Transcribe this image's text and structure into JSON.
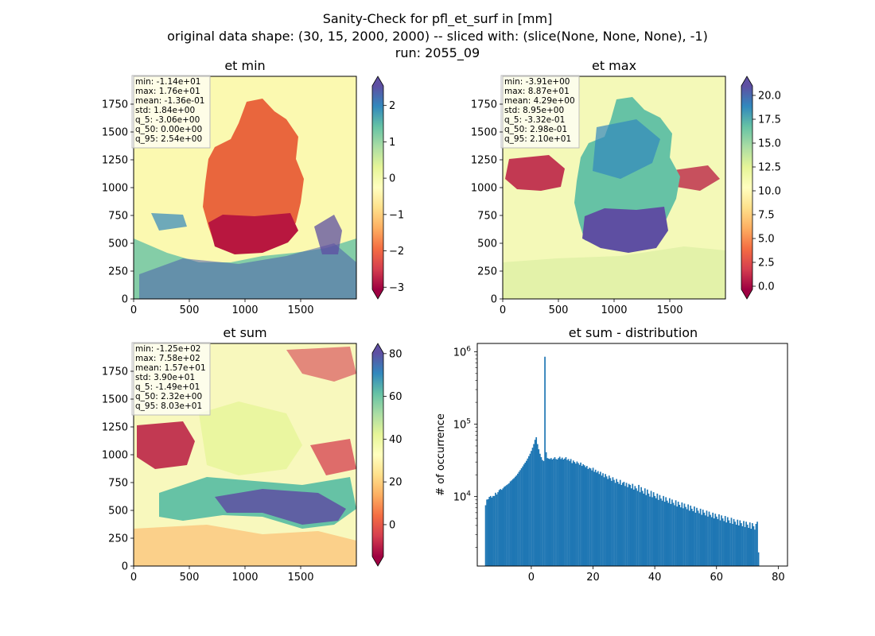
{
  "suptitle": {
    "line1": "Sanity-Check for pfl_et_surf in [mm]",
    "line2": "original data shape: (30, 15, 2000, 2000) -- sliced with: (slice(None, None, None), -1)",
    "line3": "run: 2055_09"
  },
  "colors": {
    "hist_bar": "#1f77b4",
    "spectral": [
      "#9e0142",
      "#d53e4f",
      "#f46d43",
      "#fdae61",
      "#fee08b",
      "#ffffbf",
      "#e6f598",
      "#abdda4",
      "#66c2a5",
      "#3288bd",
      "#5e4fa2"
    ]
  },
  "chart_data": [
    {
      "type": "heatmap",
      "title": "et min",
      "xlim": [
        0,
        2000
      ],
      "ylim": [
        0,
        2000
      ],
      "x_ticks": [
        "0",
        "500",
        "1000",
        "1500"
      ],
      "y_ticks": [
        "0",
        "250",
        "500",
        "750",
        "1000",
        "1250",
        "1500",
        "1750"
      ],
      "colorbar": {
        "vmin": -3.06,
        "vmax": 2.54,
        "ticks": [
          -3,
          -2,
          -1,
          0,
          1,
          2
        ],
        "tick_labels": [
          "−3",
          "−2",
          "−1",
          "0",
          "1",
          "2"
        ],
        "extend": "both",
        "colormap": "Spectral"
      },
      "stats": [
        "min: -1.14e+01",
        "max: 1.76e+01",
        "mean: -1.36e-01",
        "std: 1.84e+00",
        "q_5: -3.06e+00",
        "q_50: 0.00e+00",
        "q_95: 2.54e+00"
      ]
    },
    {
      "type": "heatmap",
      "title": "et max",
      "xlim": [
        0,
        2000
      ],
      "ylim": [
        0,
        2000
      ],
      "x_ticks": [
        "0",
        "500",
        "1000",
        "1500"
      ],
      "y_ticks": [
        "0",
        "250",
        "500",
        "750",
        "1000",
        "1250",
        "1500",
        "1750"
      ],
      "colorbar": {
        "vmin": -0.332,
        "vmax": 21.0,
        "ticks": [
          0,
          2.5,
          5,
          7.5,
          10,
          12.5,
          15,
          17.5,
          20
        ],
        "tick_labels": [
          "0.0",
          "2.5",
          "5.0",
          "7.5",
          "10.0",
          "12.5",
          "15.0",
          "17.5",
          "20.0"
        ],
        "extend": "both",
        "colormap": "Spectral"
      },
      "stats": [
        "min: -3.91e+00",
        "max: 8.87e+01",
        "mean: 4.29e+00",
        "std: 8.95e+00",
        "q_5: -3.32e-01",
        "q_50: 2.98e-01",
        "q_95: 2.10e+01"
      ]
    },
    {
      "type": "heatmap",
      "title": "et sum",
      "xlim": [
        0,
        2000
      ],
      "ylim": [
        0,
        2000
      ],
      "x_ticks": [
        "0",
        "500",
        "1000",
        "1500"
      ],
      "y_ticks": [
        "0",
        "250",
        "500",
        "750",
        "1000",
        "1250",
        "1500",
        "1750"
      ],
      "colorbar": {
        "vmin": -14.9,
        "vmax": 80.3,
        "ticks": [
          0,
          20,
          40,
          60,
          80
        ],
        "tick_labels": [
          "0",
          "20",
          "40",
          "60",
          "80"
        ],
        "extend": "both",
        "colormap": "Spectral"
      },
      "stats": [
        "min: -1.25e+02",
        "max: 7.58e+02",
        "mean: 1.57e+01",
        "std: 3.90e+01",
        "q_5: -1.49e+01",
        "q_50: 2.32e+00",
        "q_95: 8.03e+01"
      ]
    },
    {
      "type": "bar",
      "title": "et sum - distribution",
      "xlabel": "",
      "ylabel": "# of occurrence",
      "xlim": [
        -17.5,
        83.0
      ],
      "ylim": [
        1100,
        1300000
      ],
      "yscale": "log",
      "x_ticks": [
        0,
        20,
        40,
        60,
        80
      ],
      "y_ticks": [
        {
          "value": 10000,
          "base": "10",
          "exp": "4"
        },
        {
          "value": 100000,
          "base": "10",
          "exp": "5"
        },
        {
          "value": 1000000,
          "base": "10",
          "exp": "6"
        }
      ],
      "bins": {
        "start": -15.0,
        "width": 0.4
      },
      "values": [
        7600,
        9100,
        9200,
        9900,
        10200,
        9700,
        10200,
        10200,
        11300,
        10700,
        11500,
        12300,
        12700,
        12400,
        13000,
        13600,
        14000,
        14400,
        14800,
        15300,
        16200,
        16700,
        17400,
        18000,
        18800,
        19600,
        20700,
        22000,
        23200,
        24600,
        26100,
        27800,
        29400,
        31200,
        33500,
        36200,
        39100,
        42700,
        47300,
        53100,
        60800,
        66000,
        53000,
        45000,
        39000,
        35000,
        32000,
        31000,
        852000,
        41000,
        34000,
        33500,
        33000,
        34000,
        32500,
        33500,
        35000,
        33000,
        32500,
        34000,
        35500,
        33000,
        34500,
        32500,
        33500,
        35000,
        32000,
        33000,
        31000,
        33000,
        29000,
        31500,
        30000,
        28500,
        30500,
        29000,
        27500,
        29500,
        26500,
        28000,
        27000,
        25500,
        26500,
        24000,
        25000,
        24500,
        23000,
        25000,
        22000,
        23500,
        21500,
        22500,
        20500,
        22000,
        19500,
        21000,
        18500,
        20500,
        19000,
        17500,
        19500,
        18000,
        16500,
        18500,
        17000,
        15500,
        17500,
        16000,
        15000,
        17000,
        14500,
        15500,
        16000,
        14000,
        15500,
        13500,
        15000,
        14500,
        13000,
        15000,
        12500,
        14000,
        13000,
        12000,
        14500,
        11500,
        13500,
        12000,
        11000,
        13000,
        10500,
        12500,
        11000,
        10000,
        12000,
        9800,
        11500,
        10200,
        9500,
        11000,
        9000,
        10500,
        9400,
        8800,
        10200,
        8500,
        9800,
        8800,
        8200,
        9500,
        7900,
        9100,
        8200,
        7600,
        8900,
        7300,
        8500,
        7700,
        7100,
        8300,
        6900,
        8000,
        7200,
        6700,
        7800,
        6400,
        7500,
        6800,
        6300,
        7300,
        6000,
        7000,
        6400,
        5900,
        6800,
        5600,
        6600,
        6000,
        5500,
        6400,
        5300,
        6200,
        5600,
        5200,
        6000,
        5000,
        5800,
        5300,
        4900,
        5700,
        4700,
        5500,
        5000,
        4600,
        5400,
        4400,
        5200,
        4700,
        4300,
        5100,
        4200,
        4900,
        4500,
        4100,
        4800,
        4000,
        4700,
        4300,
        3900,
        4600,
        3800,
        4500,
        4100,
        3700,
        4400,
        3600,
        4300,
        3900,
        3500,
        4200,
        4500,
        1700
      ]
    }
  ]
}
